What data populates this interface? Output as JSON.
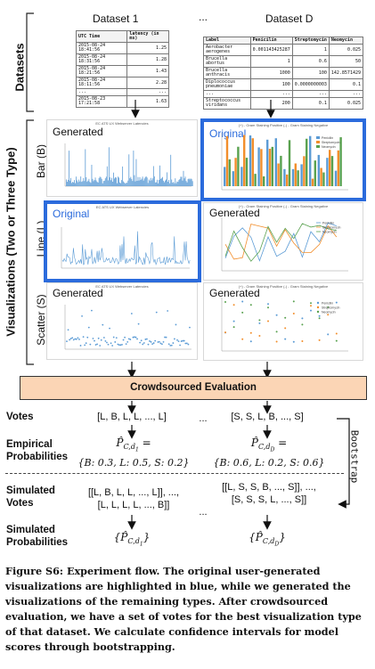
{
  "sections": {
    "datasets": "Datasets",
    "visualizations": "Visualizations (Two or Three Type)"
  },
  "datasets": {
    "dataset1_title": "Dataset 1",
    "ellipsis": "...",
    "datasetD_title": "Dataset D",
    "table1": {
      "headers": [
        "UTC Time",
        "latency (in ms)"
      ],
      "rows": [
        [
          "2015-08-24 18:41:56",
          "1.25"
        ],
        [
          "2015-08-24 18:31:56",
          "1.28"
        ],
        [
          "2015-08-24 18:21:56",
          "1.43"
        ],
        [
          "2015-08-24 18:11:56",
          "2.28"
        ],
        [
          "...",
          "..."
        ],
        [
          "2015-08-23 17:21:58",
          "1.63"
        ]
      ]
    },
    "tableD": {
      "headers": [
        "Label",
        "Penicilin",
        "Streptomycin",
        "Neomycin"
      ],
      "rows": [
        [
          "Aerobacter aerogenes",
          "0.001143425287",
          "1",
          "0.025"
        ],
        [
          "Brucella abortus",
          "1",
          "0.6",
          "50"
        ],
        [
          "Brucella anthracis",
          "1000",
          "100",
          "142.8571429"
        ],
        [
          "Diplococcus pneumoniae",
          "100",
          "0.0000000003",
          "0.1"
        ],
        [
          "...",
          "...",
          "...",
          "..."
        ],
        [
          "Streptococcus viridans",
          "200",
          "0.1",
          "0.025"
        ]
      ]
    }
  },
  "rows": {
    "bar": "Bar (B)",
    "line": "Line (L)",
    "scatter": "Scatter (S)"
  },
  "panels": {
    "generated": "Generated",
    "original": "Original",
    "title_left": "EC ATS UX Webserver Latencies",
    "title_right": "(+) - Gram Staining Positive  (-) - Gram Staining Negative",
    "xlabel_left": "UTC Time",
    "ylabel_left": "latency (in ms)",
    "ylabel_right": "MIC (effectiveness)",
    "legend": [
      "Penicilin",
      "Streptomycin",
      "Neomycin"
    ],
    "series_colors": [
      "#5b9bd5",
      "#f28e2b",
      "#59a14f"
    ],
    "highlight_color": "#2b6bdc"
  },
  "evaluation": "Crowdsourced Evaluation",
  "labels": {
    "votes": "Votes",
    "empirical": "Empirical\nProbabilities",
    "sim_votes": "Simulated\nVotes",
    "sim_probs": "Simulated\nProbabilities",
    "bootstrap": "Bootstrap"
  },
  "values": {
    "votes_1": "[L, B, L, L, ..., L]",
    "votes_D": "[S, S, L, B, ..., S]",
    "ellipsis": "...",
    "emp_1_dist": "{B: 0.3, L: 0.5, S: 0.2}",
    "emp_D_dist": "{B: 0.6, L: 0.2, S: 0.6}",
    "sim_1_a": "[[L, B, L, L, ..., L]], ...,",
    "sim_1_b": "[L, L, L, L, ..., B]]",
    "sim_D_a": "[[L, S, S, B, ..., S]], ...,",
    "sim_D_b": "[S, S, S, L, ..., S]]"
  },
  "caption": "Figure S6: Experiment flow. The original user-generated visualizations are highlighted in blue, while we generated the visualizations of the remaining types. After crowdsourced evaluation, we have a set of votes for the best visualization type of that dataset. We calculate confidence intervals for model scores through bootstrapping."
}
